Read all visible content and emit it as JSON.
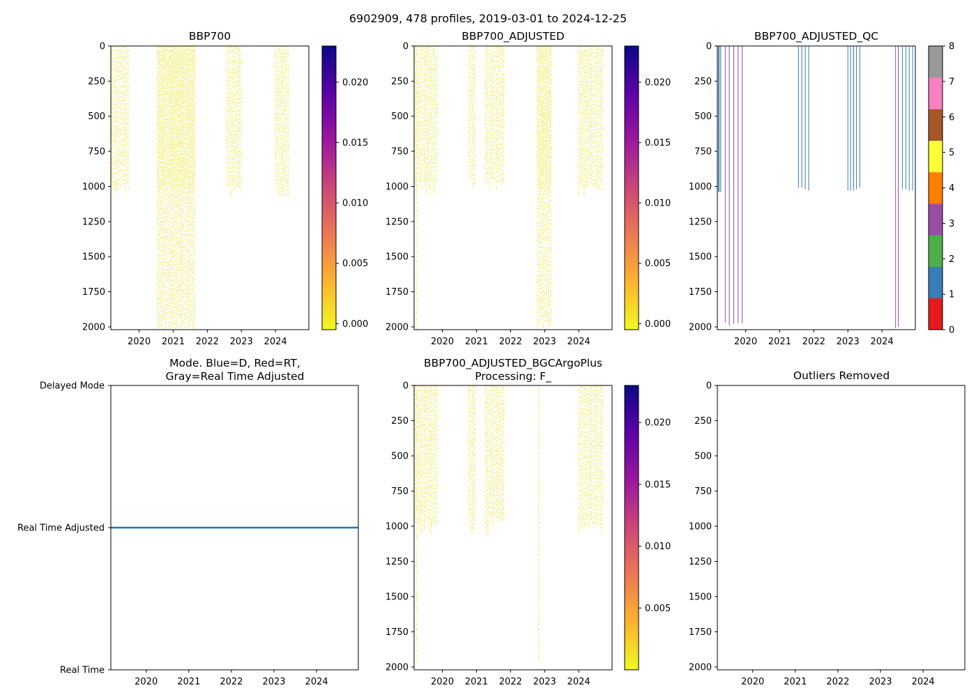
{
  "suptitle": "6902909, 478 profiles, 2019-03-01 to 2024-12-25",
  "colors": {
    "data_mark": "#f0e422",
    "mode_line": "#1f77b4",
    "qc_1": "#377eb8",
    "qc_3": "#984ea3"
  },
  "qc_palette": [
    "#e41a1c",
    "#377eb8",
    "#4daf4a",
    "#984ea3",
    "#ff7f00",
    "#ffff33",
    "#a65628",
    "#f781bf",
    "#999999"
  ],
  "plasma_stops": [
    "#f0f921",
    "#fdb42f",
    "#ed7953",
    "#cc4778",
    "#9c179e",
    "#5c01a6",
    "#0d0887"
  ],
  "chart_data": [
    {
      "id": "bbp700",
      "type": "heatmap",
      "title": "BBP700",
      "xlim": [
        2019.17,
        2024.98
      ],
      "ylim": [
        2020,
        0
      ],
      "yticks": [
        "0",
        "250",
        "500",
        "750",
        "1000",
        "1250",
        "1500",
        "1750",
        "2000"
      ],
      "xticks": [
        "2020",
        "2021",
        "2022",
        "2023",
        "2024"
      ],
      "colorbar": {
        "cmap": "plasma_r",
        "range": [
          -0.0005,
          0.023
        ],
        "ticks": [
          "0.000",
          "0.005",
          "0.010",
          "0.015",
          "0.020"
        ]
      },
      "segments": [
        {
          "t0": 2019.2,
          "t1": 2019.7,
          "depth_max": 1020
        },
        {
          "t0": 2020.55,
          "t1": 2021.62,
          "depth_max": 1000
        },
        {
          "t0": 2020.55,
          "t1": 2021.62,
          "depth_max": 2000
        },
        {
          "t0": 2022.57,
          "t1": 2023.0,
          "depth_max": 1040
        },
        {
          "t0": 2024.0,
          "t1": 2024.42,
          "depth_max": 1020
        }
      ]
    },
    {
      "id": "bbp700-adjusted",
      "type": "heatmap",
      "title": "BBP700_ADJUSTED",
      "xlim": [
        2019.17,
        2024.98
      ],
      "ylim": [
        2020,
        0
      ],
      "yticks": [
        "0",
        "250",
        "500",
        "750",
        "1000",
        "1250",
        "1500",
        "1750",
        "2000"
      ],
      "xticks": [
        "2020",
        "2021",
        "2022",
        "2023",
        "2024"
      ],
      "colorbar": {
        "cmap": "plasma_r",
        "range": [
          -0.0005,
          0.023
        ],
        "ticks": [
          "0.000",
          "0.005",
          "0.010",
          "0.015",
          "0.020"
        ]
      },
      "segments": [
        {
          "t0": 2019.2,
          "t1": 2019.88,
          "depth_max": 1010
        },
        {
          "t0": 2019.25,
          "t1": 2019.27,
          "depth_max": 2000
        },
        {
          "t0": 2020.78,
          "t1": 2020.95,
          "depth_max": 1000
        },
        {
          "t0": 2021.27,
          "t1": 2021.85,
          "depth_max": 1000
        },
        {
          "t0": 2022.8,
          "t1": 2023.22,
          "depth_max": 1000
        },
        {
          "t0": 2022.8,
          "t1": 2023.22,
          "depth_max": 2000
        },
        {
          "t0": 2024.0,
          "t1": 2024.72,
          "depth_max": 1020
        }
      ]
    },
    {
      "id": "bbp700-adjusted-qc",
      "type": "heatmap",
      "title": "BBP700_ADJUSTED_QC",
      "xlim": [
        2019.17,
        2024.98
      ],
      "ylim": [
        2020,
        0
      ],
      "yticks": [
        "0",
        "250",
        "500",
        "750",
        "1000",
        "1250",
        "1500",
        "1750",
        "2000"
      ],
      "xticks": [
        "2020",
        "2021",
        "2022",
        "2023",
        "2024"
      ],
      "colorbar": {
        "cmap": "qc_categorical",
        "range": [
          0,
          8
        ],
        "ticks": [
          "0",
          "1",
          "2",
          "3",
          "4",
          "5",
          "6",
          "7",
          "8"
        ]
      },
      "profiles": [
        {
          "date": 2019.2,
          "depth_max": 1040,
          "qc": 1
        },
        {
          "date": 2019.23,
          "depth_max": 1040,
          "qc": 1
        },
        {
          "date": 2019.27,
          "depth_max": 1040,
          "qc": 1
        },
        {
          "date": 2019.4,
          "depth_max": 1970,
          "qc": 3
        },
        {
          "date": 2019.52,
          "depth_max": 1990,
          "qc": 3
        },
        {
          "date": 2019.65,
          "depth_max": 1980,
          "qc": 3
        },
        {
          "date": 2019.78,
          "depth_max": 1975,
          "qc": 3
        },
        {
          "date": 2019.9,
          "depth_max": 1975,
          "qc": 3
        },
        {
          "date": 2021.55,
          "depth_max": 1010,
          "qc": 1
        },
        {
          "date": 2021.65,
          "depth_max": 1010,
          "qc": 1
        },
        {
          "date": 2021.75,
          "depth_max": 1020,
          "qc": 1
        },
        {
          "date": 2021.85,
          "depth_max": 1030,
          "qc": 1
        },
        {
          "date": 2023.0,
          "depth_max": 1030,
          "qc": 1
        },
        {
          "date": 2023.08,
          "depth_max": 1030,
          "qc": 1
        },
        {
          "date": 2023.17,
          "depth_max": 1030,
          "qc": 1
        },
        {
          "date": 2023.25,
          "depth_max": 1020,
          "qc": 1
        },
        {
          "date": 2023.35,
          "depth_max": 1010,
          "qc": 1
        },
        {
          "date": 2024.4,
          "depth_max": 2010,
          "qc": 3
        },
        {
          "date": 2024.48,
          "depth_max": 2000,
          "qc": 3
        },
        {
          "date": 2024.6,
          "depth_max": 1020,
          "qc": 1
        },
        {
          "date": 2024.7,
          "depth_max": 1020,
          "qc": 1
        },
        {
          "date": 2024.8,
          "depth_max": 1030,
          "qc": 1
        },
        {
          "date": 2024.9,
          "depth_max": 1030,
          "qc": 1
        },
        {
          "date": 2024.98,
          "depth_max": 1030,
          "qc": 1
        }
      ]
    },
    {
      "id": "mode",
      "type": "line",
      "title_lines": [
        "Mode. Blue=D, Red=RT,",
        "Gray=Real Time Adjusted"
      ],
      "xlim": [
        2019.17,
        2024.98
      ],
      "xticks": [
        "2020",
        "2021",
        "2022",
        "2023",
        "2024"
      ],
      "ycategories": [
        "Delayed Mode",
        "Real Time Adjusted",
        "Real Time"
      ],
      "series": [
        {
          "name": "mode",
          "x": [
            2019.17,
            2024.98
          ],
          "y": [
            "Real Time Adjusted",
            "Real Time Adjusted"
          ]
        }
      ]
    },
    {
      "id": "bbp700-adjusted-bgcargoplus",
      "type": "heatmap",
      "title_lines": [
        "BBP700_ADJUSTED_BGCArgoPlus",
        "Processing: F_"
      ],
      "xlim": [
        2019.17,
        2024.98
      ],
      "ylim": [
        2020,
        0
      ],
      "yticks": [
        "0",
        "250",
        "500",
        "750",
        "1000",
        "1250",
        "1500",
        "1750",
        "2000"
      ],
      "xticks": [
        "2020",
        "2021",
        "2022",
        "2023",
        "2024"
      ],
      "colorbar": {
        "cmap": "plasma_r",
        "range": [
          0.0,
          0.023
        ],
        "ticks": [
          "0.005",
          "0.010",
          "0.015",
          "0.020"
        ]
      },
      "segments": [
        {
          "t0": 2019.2,
          "t1": 2019.88,
          "depth_max": 1010
        },
        {
          "t0": 2019.25,
          "t1": 2019.27,
          "depth_max": 2000
        },
        {
          "t0": 2020.78,
          "t1": 2020.95,
          "depth_max": 1000
        },
        {
          "t0": 2021.27,
          "t1": 2021.85,
          "depth_max": 1000
        },
        {
          "t0": 2022.82,
          "t1": 2022.84,
          "depth_max": 2000
        },
        {
          "t0": 2024.0,
          "t1": 2024.72,
          "depth_max": 1020
        }
      ]
    },
    {
      "id": "outliers",
      "type": "heatmap",
      "title": "Outliers Removed",
      "xlim": [
        2019.17,
        2024.98
      ],
      "ylim": [
        2020,
        0
      ],
      "yticks": [
        "0",
        "250",
        "500",
        "750",
        "1000",
        "1250",
        "1500",
        "1750",
        "2000"
      ],
      "xticks": [
        "2020",
        "2021",
        "2022",
        "2023",
        "2024"
      ],
      "segments": []
    }
  ]
}
